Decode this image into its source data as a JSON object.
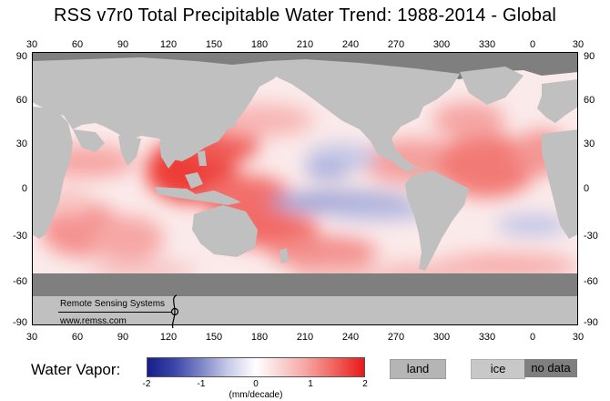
{
  "title": "RSS  v7r0  Total Precipitable Water Trend: 1988-2014 - Global",
  "axes": {
    "lon_ticks": [
      "30",
      "60",
      "90",
      "120",
      "150",
      "180",
      "210",
      "240",
      "270",
      "300",
      "330",
      "0",
      "30"
    ],
    "lat_ticks": [
      "90",
      "60",
      "30",
      "0",
      "-30",
      "-60",
      "-90"
    ]
  },
  "logo": {
    "org_name": "Remote Sensing Systems",
    "url_text": "www.remss.com"
  },
  "legend": {
    "label": "Water Vapor:",
    "ticks": [
      "-2",
      "-1",
      "0",
      "1",
      "2"
    ],
    "unit": "(mm/decade)",
    "range": [
      -2,
      2
    ],
    "colors": {
      "min": "#151e8c",
      "mid": "#ffffff",
      "max": "#e9191a",
      "land": "#c0c0c0",
      "ice": "#c8c8c8",
      "no_data": "#7f7f7f"
    },
    "land_label": "land",
    "ice_label": "ice",
    "no_data_label": "no data"
  }
}
